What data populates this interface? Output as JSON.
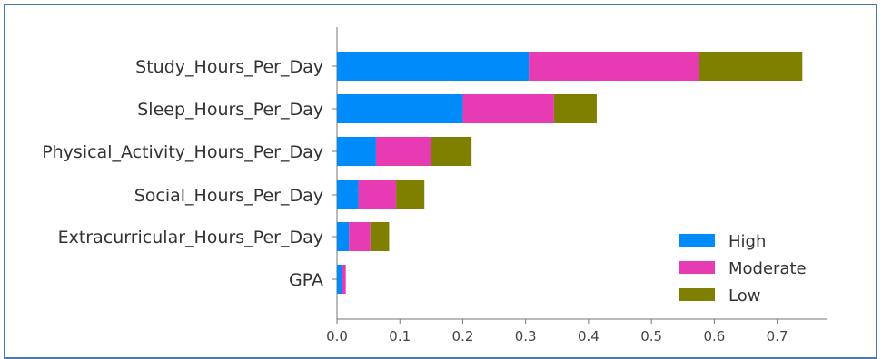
{
  "chart_data": {
    "type": "bar",
    "orientation": "horizontal",
    "stacked": true,
    "categories": [
      "Study_Hours_Per_Day",
      "Sleep_Hours_Per_Day",
      "Physical_Activity_Hours_Per_Day",
      "Social_Hours_Per_Day",
      "Extracurricular_Hours_Per_Day",
      "GPA"
    ],
    "series": [
      {
        "name": "High",
        "color": "#008bfb",
        "values": [
          0.305,
          0.2,
          0.062,
          0.034,
          0.019,
          0.008
        ]
      },
      {
        "name": "Moderate",
        "color": "#e73bb3",
        "values": [
          0.27,
          0.145,
          0.087,
          0.06,
          0.034,
          0.006
        ]
      },
      {
        "name": "Low",
        "color": "#808000",
        "values": [
          0.165,
          0.068,
          0.065,
          0.045,
          0.03,
          0.0
        ]
      }
    ],
    "xticks": [
      "0.0",
      "0.1",
      "0.2",
      "0.3",
      "0.4",
      "0.5",
      "0.6",
      "0.7"
    ],
    "xlim": [
      0,
      0.78
    ],
    "legend_position": "lower-right",
    "grid": false
  }
}
